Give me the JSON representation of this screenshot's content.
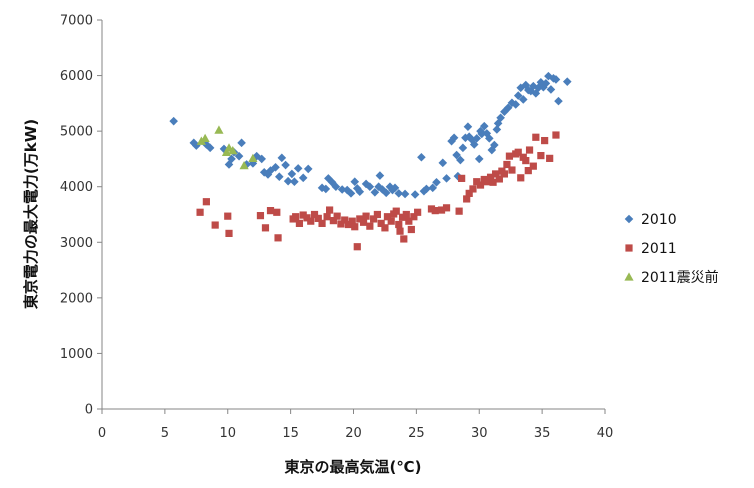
{
  "chart_data": {
    "type": "scatter",
    "title": "",
    "xlabel": "東京の最高気温(℃)",
    "ylabel": "東京電力の最大電力(万kW)",
    "xlim": [
      0,
      40
    ],
    "ylim": [
      0,
      7000
    ],
    "xticks": [
      0,
      5,
      10,
      15,
      20,
      25,
      30,
      35,
      40
    ],
    "yticks": [
      0,
      1000,
      2000,
      3000,
      4000,
      5000,
      6000,
      7000
    ],
    "grid": false,
    "legend_position": "right",
    "series": [
      {
        "name": "2010",
        "marker": "diamond",
        "color": "#4a7ebb",
        "points": [
          [
            5.7,
            5180
          ],
          [
            7.3,
            4790
          ],
          [
            7.5,
            4740
          ],
          [
            8.3,
            4760
          ],
          [
            8.6,
            4700
          ],
          [
            9.7,
            4680
          ],
          [
            10.1,
            4400
          ],
          [
            10.3,
            4500
          ],
          [
            10.5,
            4620
          ],
          [
            10.9,
            4550
          ],
          [
            11.1,
            4790
          ],
          [
            11.5,
            4400
          ],
          [
            12.0,
            4420
          ],
          [
            12.3,
            4550
          ],
          [
            12.7,
            4500
          ],
          [
            12.9,
            4260
          ],
          [
            13.2,
            4220
          ],
          [
            13.4,
            4290
          ],
          [
            13.8,
            4350
          ],
          [
            14.1,
            4180
          ],
          [
            14.3,
            4520
          ],
          [
            14.6,
            4390
          ],
          [
            14.8,
            4100
          ],
          [
            15.1,
            4230
          ],
          [
            15.3,
            4090
          ],
          [
            15.6,
            4330
          ],
          [
            16.0,
            4160
          ],
          [
            16.4,
            4320
          ],
          [
            17.5,
            3980
          ],
          [
            17.8,
            3960
          ],
          [
            18.0,
            4150
          ],
          [
            18.3,
            4080
          ],
          [
            18.6,
            4000
          ],
          [
            19.1,
            3950
          ],
          [
            19.5,
            3940
          ],
          [
            19.8,
            3880
          ],
          [
            20.1,
            4090
          ],
          [
            20.3,
            3970
          ],
          [
            20.5,
            3910
          ],
          [
            21.0,
            4050
          ],
          [
            21.3,
            4000
          ],
          [
            21.7,
            3900
          ],
          [
            22.0,
            4000
          ],
          [
            22.1,
            4200
          ],
          [
            22.3,
            3950
          ],
          [
            22.6,
            3890
          ],
          [
            22.9,
            4000
          ],
          [
            23.1,
            3940
          ],
          [
            23.3,
            3980
          ],
          [
            23.6,
            3880
          ],
          [
            24.1,
            3870
          ],
          [
            24.9,
            3860
          ],
          [
            25.4,
            4530
          ],
          [
            25.6,
            3920
          ],
          [
            25.8,
            3960
          ],
          [
            26.3,
            3980
          ],
          [
            26.6,
            4080
          ],
          [
            27.1,
            4430
          ],
          [
            27.4,
            4150
          ],
          [
            27.8,
            4820
          ],
          [
            28.0,
            4880
          ],
          [
            28.2,
            4570
          ],
          [
            28.3,
            4190
          ],
          [
            28.5,
            4480
          ],
          [
            28.7,
            4700
          ],
          [
            28.9,
            4880
          ],
          [
            29.1,
            5080
          ],
          [
            29.2,
            4900
          ],
          [
            29.4,
            4850
          ],
          [
            29.6,
            4760
          ],
          [
            29.8,
            4870
          ],
          [
            30.0,
            4500
          ],
          [
            30.1,
            5000
          ],
          [
            30.2,
            4950
          ],
          [
            30.4,
            5090
          ],
          [
            30.6,
            4960
          ],
          [
            30.8,
            4870
          ],
          [
            31.0,
            4660
          ],
          [
            31.2,
            4750
          ],
          [
            31.4,
            5030
          ],
          [
            31.5,
            5140
          ],
          [
            31.7,
            5240
          ],
          [
            32.0,
            5350
          ],
          [
            32.3,
            5420
          ],
          [
            32.6,
            5510
          ],
          [
            32.9,
            5480
          ],
          [
            33.1,
            5640
          ],
          [
            33.3,
            5780
          ],
          [
            33.5,
            5570
          ],
          [
            33.7,
            5830
          ],
          [
            33.9,
            5740
          ],
          [
            34.1,
            5720
          ],
          [
            34.3,
            5810
          ],
          [
            34.5,
            5680
          ],
          [
            34.7,
            5780
          ],
          [
            34.9,
            5880
          ],
          [
            35.1,
            5790
          ],
          [
            35.3,
            5860
          ],
          [
            35.5,
            5990
          ],
          [
            35.7,
            5750
          ],
          [
            35.9,
            5950
          ],
          [
            36.1,
            5930
          ],
          [
            36.3,
            5540
          ],
          [
            37.0,
            5890
          ]
        ]
      },
      {
        "name": "2011",
        "marker": "square",
        "color": "#be4b48",
        "points": [
          [
            7.8,
            3540
          ],
          [
            8.3,
            3730
          ],
          [
            9.0,
            3310
          ],
          [
            10.0,
            3470
          ],
          [
            10.1,
            3160
          ],
          [
            12.6,
            3480
          ],
          [
            13.0,
            3260
          ],
          [
            13.4,
            3570
          ],
          [
            13.9,
            3540
          ],
          [
            14.0,
            3080
          ],
          [
            15.2,
            3420
          ],
          [
            15.4,
            3460
          ],
          [
            15.7,
            3340
          ],
          [
            16.0,
            3490
          ],
          [
            16.3,
            3440
          ],
          [
            16.6,
            3380
          ],
          [
            16.9,
            3500
          ],
          [
            17.2,
            3430
          ],
          [
            17.5,
            3340
          ],
          [
            17.9,
            3460
          ],
          [
            18.1,
            3580
          ],
          [
            18.4,
            3390
          ],
          [
            18.7,
            3470
          ],
          [
            19.0,
            3330
          ],
          [
            19.3,
            3400
          ],
          [
            19.6,
            3320
          ],
          [
            19.9,
            3380
          ],
          [
            20.1,
            3280
          ],
          [
            20.3,
            2920
          ],
          [
            20.5,
            3420
          ],
          [
            20.8,
            3360
          ],
          [
            21.0,
            3470
          ],
          [
            21.3,
            3290
          ],
          [
            21.6,
            3420
          ],
          [
            21.9,
            3500
          ],
          [
            22.2,
            3340
          ],
          [
            22.5,
            3260
          ],
          [
            22.7,
            3460
          ],
          [
            23.0,
            3380
          ],
          [
            23.2,
            3510
          ],
          [
            23.4,
            3560
          ],
          [
            23.6,
            3320
          ],
          [
            23.7,
            3200
          ],
          [
            23.9,
            3450
          ],
          [
            24.0,
            3060
          ],
          [
            24.2,
            3500
          ],
          [
            24.4,
            3380
          ],
          [
            24.6,
            3230
          ],
          [
            24.8,
            3460
          ],
          [
            25.1,
            3540
          ],
          [
            26.2,
            3600
          ],
          [
            26.5,
            3570
          ],
          [
            27.0,
            3580
          ],
          [
            27.4,
            3620
          ],
          [
            28.4,
            3560
          ],
          [
            28.6,
            4150
          ],
          [
            29.0,
            3780
          ],
          [
            29.2,
            3880
          ],
          [
            29.5,
            3960
          ],
          [
            29.8,
            4090
          ],
          [
            30.1,
            4030
          ],
          [
            30.4,
            4130
          ],
          [
            30.6,
            4090
          ],
          [
            30.9,
            4170
          ],
          [
            31.1,
            4080
          ],
          [
            31.3,
            4230
          ],
          [
            31.6,
            4140
          ],
          [
            31.8,
            4280
          ],
          [
            32.0,
            4230
          ],
          [
            32.2,
            4400
          ],
          [
            32.4,
            4550
          ],
          [
            32.6,
            4300
          ],
          [
            32.9,
            4590
          ],
          [
            33.1,
            4620
          ],
          [
            33.3,
            4160
          ],
          [
            33.5,
            4530
          ],
          [
            33.7,
            4470
          ],
          [
            33.9,
            4290
          ],
          [
            34.0,
            4660
          ],
          [
            34.3,
            4370
          ],
          [
            34.5,
            4890
          ],
          [
            34.9,
            4560
          ],
          [
            35.2,
            4830
          ],
          [
            35.6,
            4510
          ],
          [
            36.1,
            4930
          ]
        ]
      },
      {
        "name": "2011震災前",
        "marker": "triangle",
        "color": "#98b954",
        "points": [
          [
            7.9,
            4820
          ],
          [
            8.2,
            4870
          ],
          [
            9.3,
            5020
          ],
          [
            9.9,
            4620
          ],
          [
            10.1,
            4700
          ],
          [
            10.4,
            4650
          ],
          [
            11.3,
            4380
          ],
          [
            12.0,
            4510
          ]
        ]
      }
    ]
  }
}
